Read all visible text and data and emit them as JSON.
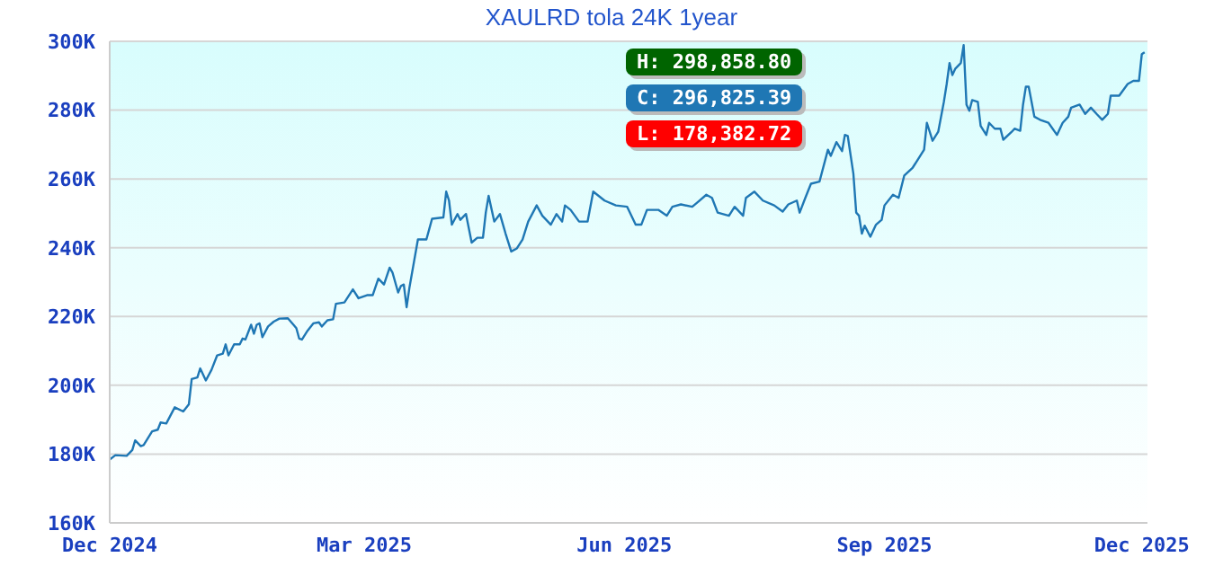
{
  "chart_data": {
    "type": "line",
    "title": "XAULRD tola 24K 1year",
    "x": [
      "2024-12-01",
      "2024-12-03",
      "2024-12-07",
      "2024-12-09",
      "2024-12-10",
      "2024-12-12",
      "2024-12-13",
      "2024-12-16",
      "2024-12-18",
      "2024-12-19",
      "2024-12-21",
      "2024-12-24",
      "2024-12-27",
      "2024-12-29",
      "2024-12-30",
      "2025-01-01",
      "2025-01-02",
      "2025-01-04",
      "2025-01-06",
      "2025-01-08",
      "2025-01-10",
      "2025-01-11",
      "2025-01-12",
      "2025-01-14",
      "2025-01-16",
      "2025-01-17",
      "2025-01-18",
      "2025-01-20",
      "2025-01-21",
      "2025-01-22",
      "2025-01-23",
      "2025-01-24",
      "2025-01-26",
      "2025-01-28",
      "2025-01-30",
      "2025-02-02",
      "2025-02-04",
      "2025-02-05",
      "2025-02-06",
      "2025-02-07",
      "2025-02-09",
      "2025-02-11",
      "2025-02-13",
      "2025-02-14",
      "2025-02-16",
      "2025-02-18",
      "2025-02-19",
      "2025-02-22",
      "2025-02-25",
      "2025-02-27",
      "2025-03-02",
      "2025-03-04",
      "2025-03-06",
      "2025-03-08",
      "2025-03-10",
      "2025-03-11",
      "2025-03-13",
      "2025-03-14",
      "2025-03-15",
      "2025-03-16",
      "2025-03-17",
      "2025-03-20",
      "2025-03-23",
      "2025-03-25",
      "2025-03-29",
      "2025-03-30",
      "2025-03-31",
      "2025-04-01",
      "2025-04-03",
      "2025-04-04",
      "2025-04-06",
      "2025-04-08",
      "2025-04-10",
      "2025-04-12",
      "2025-04-13",
      "2025-04-14",
      "2025-04-16",
      "2025-04-18",
      "2025-04-20",
      "2025-04-22",
      "2025-04-24",
      "2025-04-26",
      "2025-04-28",
      "2025-05-01",
      "2025-05-03",
      "2025-05-06",
      "2025-05-08",
      "2025-05-10",
      "2025-05-11",
      "2025-05-13",
      "2025-05-16",
      "2025-05-19",
      "2025-05-21",
      "2025-05-25",
      "2025-05-29",
      "2025-06-02",
      "2025-06-05",
      "2025-06-07",
      "2025-06-09",
      "2025-06-13",
      "2025-06-16",
      "2025-06-18",
      "2025-06-21",
      "2025-06-25",
      "2025-06-27",
      "2025-06-30",
      "2025-07-02",
      "2025-07-04",
      "2025-07-08",
      "2025-07-10",
      "2025-07-13",
      "2025-07-14",
      "2025-07-17",
      "2025-07-20",
      "2025-07-24",
      "2025-07-27",
      "2025-07-29",
      "2025-08-01",
      "2025-08-02",
      "2025-08-04",
      "2025-08-06",
      "2025-08-09",
      "2025-08-12",
      "2025-08-13",
      "2025-08-15",
      "2025-08-17",
      "2025-08-18",
      "2025-08-19",
      "2025-08-21",
      "2025-08-22",
      "2025-08-23",
      "2025-08-24",
      "2025-08-25",
      "2025-08-27",
      "2025-08-29",
      "2025-08-31",
      "2025-09-01",
      "2025-09-04",
      "2025-09-06",
      "2025-09-08",
      "2025-09-11",
      "2025-09-13",
      "2025-09-15",
      "2025-09-16",
      "2025-09-18",
      "2025-09-20",
      "2025-09-22",
      "2025-09-23",
      "2025-09-24",
      "2025-09-25",
      "2025-09-26",
      "2025-09-28",
      "2025-09-29",
      "2025-09-30",
      "2025-10-01",
      "2025-10-02",
      "2025-10-04",
      "2025-10-05",
      "2025-10-07",
      "2025-10-08",
      "2025-10-10",
      "2025-10-12",
      "2025-10-13",
      "2025-10-16",
      "2025-10-17",
      "2025-10-19",
      "2025-10-20",
      "2025-10-21",
      "2025-10-22",
      "2025-10-24",
      "2025-10-26",
      "2025-10-29",
      "2025-11-01",
      "2025-11-03",
      "2025-11-05",
      "2025-11-06",
      "2025-11-09",
      "2025-11-11",
      "2025-11-13",
      "2025-11-15",
      "2025-11-17",
      "2025-11-19",
      "2025-11-20",
      "2025-11-23",
      "2025-11-26",
      "2025-11-28",
      "2025-11-30",
      "2025-12-01",
      "2025-12-02"
    ],
    "series": [
      {
        "color": "#1f77b4",
        "values": [
          178.4,
          179.7,
          179.5,
          181.2,
          184.0,
          182.3,
          182.6,
          186.6,
          187.1,
          189.2,
          188.9,
          193.6,
          192.4,
          194.5,
          201.8,
          202.3,
          204.9,
          201.4,
          204.5,
          208.7,
          209.2,
          211.9,
          208.7,
          211.9,
          211.9,
          213.6,
          213.3,
          217.6,
          215.0,
          217.6,
          218.0,
          214.0,
          217.1,
          218.5,
          219.4,
          219.5,
          217.6,
          216.6,
          213.6,
          213.3,
          215.9,
          218.0,
          218.3,
          217.1,
          218.9,
          219.2,
          223.7,
          224.1,
          227.9,
          225.3,
          226.2,
          226.2,
          231.0,
          229.3,
          234.2,
          232.8,
          227.0,
          228.9,
          229.3,
          222.7,
          228.4,
          242.4,
          242.4,
          248.4,
          248.8,
          256.3,
          253.7,
          246.7,
          249.8,
          248.1,
          249.8,
          241.5,
          242.9,
          242.9,
          250.2,
          255.1,
          247.6,
          249.8,
          244.1,
          238.9,
          239.8,
          242.4,
          247.6,
          252.3,
          249.3,
          246.7,
          249.8,
          247.6,
          252.3,
          251.0,
          247.6,
          247.6,
          256.3,
          253.7,
          252.3,
          251.9,
          246.7,
          246.7,
          251.0,
          251.0,
          249.3,
          251.9,
          252.6,
          251.9,
          253.3,
          255.4,
          254.5,
          250.2,
          249.3,
          251.9,
          249.3,
          254.5,
          256.3,
          253.7,
          252.3,
          250.5,
          252.6,
          253.7,
          250.2,
          254.5,
          258.6,
          259.2,
          268.5,
          266.7,
          270.7,
          268.1,
          272.8,
          272.5,
          261.5,
          250.2,
          249.3,
          244.1,
          246.4,
          243.2,
          246.7,
          248.1,
          252.3,
          255.4,
          254.5,
          261.0,
          263.3,
          265.9,
          268.5,
          276.3,
          271.1,
          273.7,
          282.4,
          287.6,
          293.7,
          290.2,
          292.0,
          293.7,
          298.9,
          281.6,
          279.8,
          282.9,
          282.4,
          275.4,
          272.8,
          276.3,
          274.6,
          274.6,
          271.4,
          273.7,
          274.6,
          274.0,
          281.6,
          286.8,
          286.8,
          278.1,
          277.2,
          276.3,
          272.8,
          276.3,
          278.1,
          280.7,
          281.6,
          278.9,
          280.7,
          278.9,
          277.2,
          278.9,
          284.2,
          284.2,
          287.6,
          288.5,
          288.5,
          296.3,
          296.8
        ]
      }
    ],
    "xlim": [
      "2024-12-01",
      "2025-12-03"
    ],
    "xticks": [
      {
        "value": "2024-12-01",
        "label": "Dec 2024"
      },
      {
        "value": "2025-03-01",
        "label": "Mar 2025"
      },
      {
        "value": "2025-06-01",
        "label": "Jun 2025"
      },
      {
        "value": "2025-09-01",
        "label": "Sep 2025"
      },
      {
        "value": "2025-12-01",
        "label": "Dec 2025"
      }
    ],
    "ylim": [
      160,
      300
    ],
    "yticks": [
      {
        "value": 160,
        "label": "160K"
      },
      {
        "value": 180,
        "label": "180K"
      },
      {
        "value": 200,
        "label": "200K"
      },
      {
        "value": 220,
        "label": "220K"
      },
      {
        "value": 240,
        "label": "240K"
      },
      {
        "value": 260,
        "label": "260K"
      },
      {
        "value": 280,
        "label": "280K"
      },
      {
        "value": 300,
        "label": "300K"
      }
    ],
    "grid": "y",
    "marker": "none",
    "line_style": "solid",
    "annotations": [
      "H: 298,858.80",
      "C: 296,825.39",
      "L: 178,382.72"
    ]
  }
}
